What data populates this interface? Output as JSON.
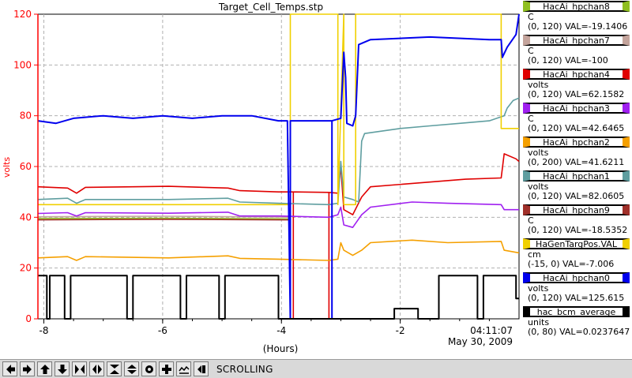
{
  "chart_data": {
    "type": "line",
    "title": "Target_Cell_Temps.stp",
    "xlabel": "(Hours)",
    "ylabel": "volts",
    "xlim": [
      -8.1,
      0
    ],
    "ylim": [
      0,
      120
    ],
    "x_ticks": [
      "-8",
      "-6",
      "-4",
      "-2"
    ],
    "y_ticks": [
      "0",
      "20",
      "40",
      "60",
      "80",
      "100",
      "120"
    ],
    "timestamp_time": "04:11:07",
    "timestamp_date": "May 30, 2009",
    "grid": true,
    "axis_color": "#ff0000",
    "series": [
      {
        "name": "HacAi_hpchan8",
        "color": "#8fbf20",
        "units": "C",
        "range": "(0, 120)",
        "readout": "VAL=-19.1406",
        "points": [
          [
            -8.1,
            39.5
          ],
          [
            -6,
            39.6
          ],
          [
            -4.05,
            39.4
          ],
          [
            -3.85,
            39.3
          ]
        ]
      },
      {
        "name": "HacAi_hpchan7",
        "color": "#c4a49c",
        "units": "C",
        "range": "(0, 120)",
        "readout": "VAL=-100",
        "points": [
          [
            -8.1,
            40.2
          ],
          [
            -6,
            40.4
          ],
          [
            -4.05,
            40.1
          ],
          [
            -3.85,
            40
          ]
        ]
      },
      {
        "name": "HacAi_hpchan4",
        "color": "#e00000",
        "units": "volts",
        "range": "(0, 120)",
        "readout": "VAL=62.1582",
        "points": [
          [
            -8.1,
            52
          ],
          [
            -7.6,
            51.5
          ],
          [
            -7.45,
            49.5
          ],
          [
            -7.3,
            51.8
          ],
          [
            -6.5,
            52
          ],
          [
            -5.9,
            52.2
          ],
          [
            -4.9,
            51.5
          ],
          [
            -4.7,
            50.5
          ],
          [
            -4.05,
            50
          ],
          [
            -3.8,
            50
          ],
          [
            -3.8,
            0
          ],
          [
            -3.8,
            50
          ],
          [
            -3.2,
            49.8
          ],
          [
            -3.2,
            0
          ],
          [
            -3.2,
            49.8
          ],
          [
            -3.05,
            49.5
          ],
          [
            -3.0,
            60
          ],
          [
            -2.95,
            43
          ],
          [
            -2.8,
            41
          ],
          [
            -2.65,
            48
          ],
          [
            -2.5,
            52
          ],
          [
            -0.9,
            55
          ],
          [
            -0.3,
            55.5
          ],
          [
            -0.25,
            65
          ],
          [
            -0.05,
            63
          ],
          [
            0,
            62
          ]
        ]
      },
      {
        "name": "HacAi_hpchan3",
        "color": "#a020f0",
        "units": "C",
        "range": "(0, 120)",
        "readout": "VAL=42.6465",
        "points": [
          [
            -8.1,
            41.5
          ],
          [
            -7.6,
            41.8
          ],
          [
            -7.45,
            40.5
          ],
          [
            -7.3,
            41.8
          ],
          [
            -5.9,
            41.6
          ],
          [
            -4.9,
            42
          ],
          [
            -4.7,
            40.5
          ],
          [
            -4.05,
            40.5
          ],
          [
            -3.2,
            40
          ],
          [
            -3.05,
            41
          ],
          [
            -3.0,
            44
          ],
          [
            -2.95,
            37
          ],
          [
            -2.8,
            36
          ],
          [
            -2.65,
            41
          ],
          [
            -2.5,
            44
          ],
          [
            -1.8,
            46
          ],
          [
            -1.2,
            45.5
          ],
          [
            -0.3,
            45
          ],
          [
            -0.25,
            43
          ],
          [
            0,
            43
          ]
        ]
      },
      {
        "name": "HacAi_hpchan2",
        "color": "#f5a000",
        "units": "volts",
        "range": "(0, 200)",
        "readout": "VAL=41.6211",
        "points": [
          [
            -8.1,
            24
          ],
          [
            -7.6,
            24.5
          ],
          [
            -7.45,
            23
          ],
          [
            -7.3,
            24.5
          ],
          [
            -5.9,
            24
          ],
          [
            -4.9,
            24.8
          ],
          [
            -4.7,
            23.8
          ],
          [
            -4.05,
            23.5
          ],
          [
            -3.2,
            23
          ],
          [
            -3.05,
            23.5
          ],
          [
            -3.0,
            30
          ],
          [
            -2.95,
            27
          ],
          [
            -2.8,
            25
          ],
          [
            -2.65,
            27
          ],
          [
            -2.5,
            30
          ],
          [
            -1.8,
            31
          ],
          [
            -1.2,
            30
          ],
          [
            -0.3,
            30.5
          ],
          [
            -0.25,
            27
          ],
          [
            0,
            26
          ]
        ]
      },
      {
        "name": "HacAi_hpchan1",
        "color": "#5f9ea0",
        "units": "volts",
        "range": "(0, 120)",
        "readout": "VAL=82.0605",
        "points": [
          [
            -8.1,
            47
          ],
          [
            -7.6,
            47.5
          ],
          [
            -7.45,
            45.5
          ],
          [
            -7.3,
            47
          ],
          [
            -5.9,
            47
          ],
          [
            -4.9,
            47.5
          ],
          [
            -4.7,
            46
          ],
          [
            -4.05,
            45.5
          ],
          [
            -3.2,
            45
          ],
          [
            -3.05,
            45.5
          ],
          [
            -3.0,
            62
          ],
          [
            -2.95,
            48
          ],
          [
            -2.8,
            47
          ],
          [
            -2.7,
            46
          ],
          [
            -2.65,
            70
          ],
          [
            -2.6,
            73
          ],
          [
            -2.0,
            75
          ],
          [
            -1.5,
            76
          ],
          [
            -1.0,
            77
          ],
          [
            -0.5,
            78
          ],
          [
            -0.25,
            80
          ],
          [
            -0.2,
            83
          ],
          [
            -0.1,
            86
          ],
          [
            0,
            87
          ]
        ]
      },
      {
        "name": "HacAi_hpchan9",
        "color": "#a0302a",
        "units": "C",
        "range": "(0, 120)",
        "readout": "VAL=-18.5352",
        "points": [
          [
            -8.1,
            39
          ],
          [
            -6,
            39.2
          ],
          [
            -4.05,
            39
          ],
          [
            -3.85,
            39
          ]
        ]
      },
      {
        "name": "HaGenTargPos.VAL",
        "color": "#f0d000",
        "units": "cm",
        "range": "(-15, 0)",
        "readout": "VAL=-7.006",
        "points": [
          [
            -8.1,
            45
          ],
          [
            -4.05,
            45
          ],
          [
            -3.85,
            45
          ],
          [
            -3.85,
            120
          ],
          [
            -3.05,
            120
          ],
          [
            -3.05,
            45
          ],
          [
            -2.95,
            120
          ],
          [
            -2.95,
            45
          ],
          [
            -2.75,
            45
          ],
          [
            -2.75,
            120
          ],
          [
            -0.3,
            120
          ],
          [
            -0.3,
            75
          ],
          [
            0,
            75
          ]
        ]
      },
      {
        "name": "HacAi_hpchan0",
        "color": "#0000ee",
        "units": "volts",
        "range": "(0, 120)",
        "readout": "VAL=125.615",
        "points": [
          [
            -8.1,
            78
          ],
          [
            -7.8,
            77
          ],
          [
            -7.5,
            79
          ],
          [
            -7.0,
            80
          ],
          [
            -6.5,
            79
          ],
          [
            -6.0,
            80
          ],
          [
            -5.5,
            79
          ],
          [
            -5.0,
            80
          ],
          [
            -4.5,
            80
          ],
          [
            -4.05,
            78
          ],
          [
            -3.9,
            78
          ],
          [
            -3.85,
            0
          ],
          [
            -3.85,
            78
          ],
          [
            -3.15,
            78
          ],
          [
            -3.15,
            0
          ],
          [
            -3.15,
            78
          ],
          [
            -3.0,
            79
          ],
          [
            -2.95,
            105
          ],
          [
            -2.92,
            95
          ],
          [
            -2.9,
            77
          ],
          [
            -2.8,
            76
          ],
          [
            -2.75,
            80
          ],
          [
            -2.7,
            108
          ],
          [
            -2.5,
            110
          ],
          [
            -1.5,
            111
          ],
          [
            -0.5,
            110
          ],
          [
            -0.3,
            110
          ],
          [
            -0.28,
            103
          ],
          [
            -0.2,
            107
          ],
          [
            -0.05,
            112
          ],
          [
            0,
            120
          ]
        ]
      },
      {
        "name": "hac_bcm_average",
        "color": "#000000",
        "units": "units",
        "range": "(0, 80)",
        "readout": "VAL=0.0237647",
        "points": [
          [
            -8.1,
            17
          ],
          [
            -7.95,
            17
          ],
          [
            -7.95,
            0
          ],
          [
            -7.9,
            0
          ],
          [
            -7.9,
            17
          ],
          [
            -7.65,
            17
          ],
          [
            -7.65,
            0
          ],
          [
            -7.55,
            0
          ],
          [
            -7.55,
            17
          ],
          [
            -6.6,
            17
          ],
          [
            -6.6,
            0
          ],
          [
            -6.5,
            0
          ],
          [
            -6.5,
            17
          ],
          [
            -5.7,
            17
          ],
          [
            -5.7,
            0
          ],
          [
            -5.6,
            0
          ],
          [
            -5.6,
            17
          ],
          [
            -5.05,
            17
          ],
          [
            -5.05,
            0
          ],
          [
            -4.95,
            0
          ],
          [
            -4.95,
            17
          ],
          [
            -4.05,
            17
          ],
          [
            -4.05,
            0
          ],
          [
            -2.1,
            0
          ],
          [
            -2.1,
            4
          ],
          [
            -1.7,
            4
          ],
          [
            -1.7,
            0
          ],
          [
            -1.35,
            0
          ],
          [
            -1.35,
            17
          ],
          [
            -0.7,
            17
          ],
          [
            -0.7,
            0
          ],
          [
            -0.6,
            0
          ],
          [
            -0.6,
            17
          ],
          [
            -0.05,
            17
          ],
          [
            -0.05,
            8
          ],
          [
            0,
            8
          ]
        ]
      }
    ]
  },
  "toolbar": {
    "status": "SCROLLING",
    "buttons": [
      "arrow-left",
      "arrow-right",
      "arrow-up",
      "arrow-down",
      "x-zoom-in",
      "x-zoom-out",
      "y-zoom-in",
      "y-zoom-out",
      "auto-scale",
      "add",
      "time-plot",
      "cursor"
    ]
  }
}
